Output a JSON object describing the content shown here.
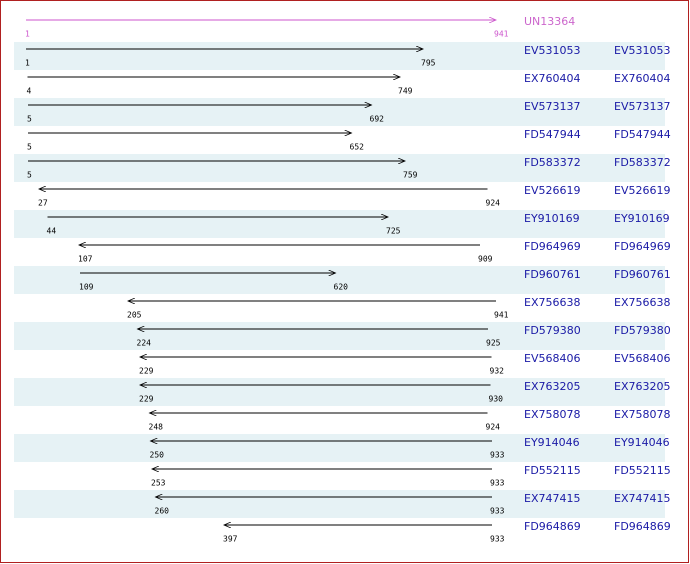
{
  "reference": {
    "name": "UN13364",
    "from": 1,
    "to": 941
  },
  "rows": [
    {
      "name": "EV531053",
      "link": "EV531053",
      "from": 1,
      "to": 795
    },
    {
      "name": "EX760404",
      "link": "EX760404",
      "from": 4,
      "to": 749
    },
    {
      "name": "EV573137",
      "link": "EV573137",
      "from": 5,
      "to": 692
    },
    {
      "name": "FD547944",
      "link": "FD547944",
      "from": 5,
      "to": 652
    },
    {
      "name": "FD583372",
      "link": "FD583372",
      "from": 5,
      "to": 759
    },
    {
      "name": "EV526619",
      "link": "EV526619",
      "from": 924,
      "to": 27
    },
    {
      "name": "EY910169",
      "link": "EY910169",
      "from": 44,
      "to": 725
    },
    {
      "name": "FD964969",
      "link": "FD964969",
      "from": 909,
      "to": 107
    },
    {
      "name": "FD960761",
      "link": "FD960761",
      "from": 109,
      "to": 620
    },
    {
      "name": "EX756638",
      "link": "EX756638",
      "from": 941,
      "to": 205
    },
    {
      "name": "FD579380",
      "link": "FD579380",
      "from": 925,
      "to": 224
    },
    {
      "name": "EV568406",
      "link": "EV568406",
      "from": 932,
      "to": 229
    },
    {
      "name": "EX763205",
      "link": "EX763205",
      "from": 930,
      "to": 229
    },
    {
      "name": "EX758078",
      "link": "EX758078",
      "from": 924,
      "to": 248
    },
    {
      "name": "EY914046",
      "link": "EY914046",
      "from": 933,
      "to": 250
    },
    {
      "name": "FD552115",
      "link": "FD552115",
      "from": 933,
      "to": 253
    },
    {
      "name": "EX747415",
      "link": "EX747415",
      "from": 933,
      "to": 260
    },
    {
      "name": "FD964869",
      "link": "FD964869",
      "from": 933,
      "to": 397
    }
  ]
}
